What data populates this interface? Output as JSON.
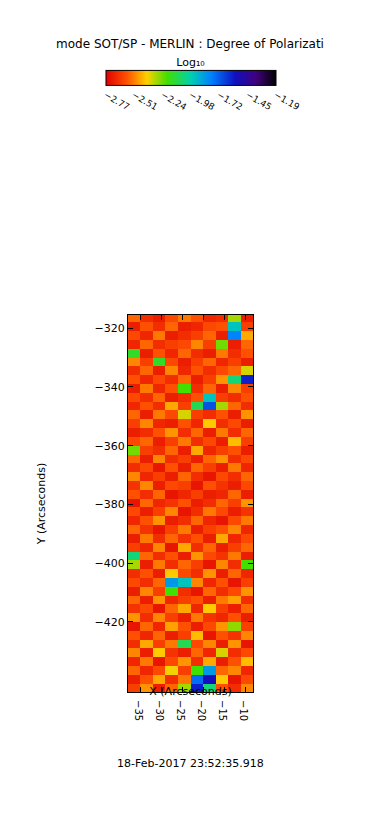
{
  "chart_data": {
    "type": "heatmap",
    "title": "mode SOT/SP - MERLIN : Degree of Polarizati",
    "x_label": "X (Arcseconds)",
    "y_label": "Y (Arcseconds)",
    "xlim": [
      -37.9,
      -8.1
    ],
    "ylim": [
      -443.9,
      -315.5
    ],
    "xticks": [
      -35,
      -30,
      -25,
      -20,
      -15,
      -10
    ],
    "yticks": [
      -420,
      -400,
      -380,
      -360,
      -340,
      -320
    ],
    "colorbar_title": "Log₁₀",
    "colorbar_range": [
      -2.77,
      -1.19
    ],
    "colorbar_ticks": [
      -2.77,
      -2.51,
      -2.24,
      -1.98,
      -1.72,
      -1.45,
      -1.19
    ],
    "annotations": [
      "18-Feb-2017 23:52:35.918"
    ],
    "x": [
      -36.5,
      -33.5,
      -30.5,
      -27.5,
      -24.5,
      -21.5,
      -18.5,
      -15.5,
      -12.5,
      -9.5
    ],
    "y": [
      -442.5,
      -439.5,
      -436.5,
      -433.5,
      -430.5,
      -427.5,
      -424.5,
      -421.5,
      -418.5,
      -415.5,
      -412.5,
      -409.5,
      -406.5,
      -403.5,
      -400.5,
      -397.5,
      -394.5,
      -391.5,
      -388.5,
      -385.5,
      -382.5,
      -379.5,
      -376.5,
      -373.5,
      -370.5,
      -367.5,
      -364.5,
      -361.5,
      -358.5,
      -355.5,
      -352.5,
      -349.5,
      -346.5,
      -343.5,
      -340.5,
      -337.5,
      -334.5,
      -331.5,
      -328.5,
      -325.5,
      -322.5,
      -319.5,
      -316.5
    ],
    "cells": [
      [
        -2.62,
        -2.48,
        -2.7,
        -2.55,
        -2.3,
        -1.6,
        -2.05,
        -2.58,
        -2.66,
        -2.5
      ],
      [
        -2.7,
        -2.58,
        -2.45,
        -2.66,
        -2.52,
        -1.75,
        -1.55,
        -2.4,
        -2.72,
        -2.6
      ],
      [
        -2.55,
        -2.68,
        -2.6,
        -2.38,
        -2.62,
        -2.2,
        -1.85,
        -2.55,
        -2.5,
        -2.68
      ],
      [
        -2.68,
        -2.52,
        -2.72,
        -2.6,
        -2.48,
        -2.66,
        -2.45,
        -2.7,
        -2.58,
        -2.42
      ],
      [
        -2.5,
        -2.7,
        -2.4,
        -2.65,
        -2.7,
        -2.55,
        -2.68,
        -2.35,
        -2.66,
        -2.6
      ],
      [
        -2.66,
        -2.45,
        -2.62,
        -2.52,
        -2.1,
        -2.6,
        -2.5,
        -2.7,
        -2.48,
        -2.72
      ],
      [
        -2.58,
        -2.68,
        -2.55,
        -2.7,
        -2.62,
        -2.42,
        -2.72,
        -2.58,
        -2.65,
        -2.5
      ],
      [
        -2.72,
        -2.55,
        -2.68,
        -2.46,
        -2.58,
        -2.7,
        -2.6,
        -2.48,
        -2.28,
        -2.62
      ],
      [
        -2.48,
        -2.66,
        -2.5,
        -2.62,
        -2.7,
        -2.52,
        -2.65,
        -2.68,
        -2.58,
        -2.7
      ],
      [
        -2.65,
        -2.6,
        -2.72,
        -2.55,
        -2.45,
        -2.68,
        -2.4,
        -2.62,
        -2.7,
        -2.55
      ],
      [
        -2.55,
        -2.7,
        -2.48,
        -2.68,
        -2.62,
        -2.58,
        -2.7,
        -2.52,
        -2.46,
        -2.66
      ],
      [
        -2.7,
        -2.5,
        -2.62,
        -2.2,
        -2.66,
        -2.72,
        -2.55,
        -2.66,
        -2.6,
        -2.48
      ],
      [
        -2.6,
        -2.66,
        -2.55,
        -1.85,
        -1.95,
        -2.5,
        -2.68,
        -2.58,
        -2.72,
        -2.62
      ],
      [
        -2.66,
        -2.58,
        -2.7,
        -2.4,
        -2.6,
        -2.66,
        -2.48,
        -2.7,
        -2.55,
        -2.68
      ],
      [
        -2.3,
        -2.7,
        -2.52,
        -2.66,
        -2.55,
        -2.62,
        -2.72,
        -2.5,
        -2.66,
        -2.2
      ],
      [
        -2.05,
        -2.55,
        -2.66,
        -2.58,
        -2.7,
        -2.48,
        -2.6,
        -2.65,
        -2.52,
        -2.7
      ],
      [
        -2.62,
        -2.68,
        -2.5,
        -2.72,
        -2.45,
        -2.66,
        -2.55,
        -2.7,
        -2.62,
        -2.55
      ],
      [
        -2.7,
        -2.52,
        -2.66,
        -2.55,
        -2.65,
        -2.58,
        -2.7,
        -2.45,
        -2.68,
        -2.6
      ],
      [
        -2.55,
        -2.65,
        -2.72,
        -2.62,
        -2.52,
        -2.7,
        -2.62,
        -2.58,
        -2.5,
        -2.68
      ],
      [
        -2.68,
        -2.58,
        -2.48,
        -2.7,
        -2.66,
        -2.55,
        -2.68,
        -2.72,
        -2.6,
        -2.52
      ],
      [
        -2.6,
        -2.7,
        -2.62,
        -2.5,
        -2.72,
        -2.66,
        -2.52,
        -2.6,
        -2.7,
        -2.65
      ],
      [
        -2.72,
        -2.55,
        -2.68,
        -2.65,
        -2.58,
        -2.7,
        -2.66,
        -2.55,
        -2.62,
        -2.48
      ],
      [
        -2.58,
        -2.66,
        -2.55,
        -2.72,
        -2.68,
        -2.62,
        -2.7,
        -2.68,
        -2.55,
        -2.7
      ],
      [
        -2.65,
        -2.5,
        -2.7,
        -2.6,
        -2.62,
        -2.72,
        -2.58,
        -2.65,
        -2.7,
        -2.6
      ],
      [
        -2.5,
        -2.68,
        -2.62,
        -2.7,
        -2.55,
        -2.66,
        -2.72,
        -2.6,
        -2.66,
        -2.55
      ],
      [
        -2.66,
        -2.6,
        -2.72,
        -2.58,
        -2.7,
        -2.55,
        -2.62,
        -2.7,
        -2.52,
        -2.68
      ],
      [
        -2.55,
        -2.7,
        -2.5,
        -2.66,
        -2.62,
        -2.7,
        -2.55,
        -2.48,
        -2.66,
        -2.6
      ],
      [
        -2.25,
        -2.62,
        -2.66,
        -2.55,
        -2.7,
        -2.45,
        -2.68,
        -2.62,
        -2.58,
        -2.7
      ],
      [
        -2.6,
        -2.55,
        -2.7,
        -2.62,
        -2.52,
        -2.66,
        -2.6,
        -2.7,
        -2.42,
        -2.62
      ],
      [
        -2.7,
        -2.66,
        -2.58,
        -2.48,
        -2.66,
        -2.55,
        -2.7,
        -2.52,
        -2.66,
        -2.55
      ],
      [
        -2.62,
        -2.5,
        -2.68,
        -2.7,
        -2.58,
        -2.68,
        -2.4,
        -2.66,
        -2.6,
        -2.7
      ],
      [
        -2.55,
        -2.7,
        -2.52,
        -2.6,
        -2.35,
        -2.62,
        -2.66,
        -2.58,
        -2.7,
        -2.48
      ],
      [
        -2.68,
        -2.58,
        -2.66,
        -2.45,
        -2.62,
        -2.1,
        -1.7,
        -2.3,
        -2.55,
        -2.66
      ],
      [
        -2.6,
        -2.66,
        -2.55,
        -2.7,
        -2.66,
        -2.58,
        -1.95,
        -2.62,
        -2.66,
        -2.58
      ],
      [
        -2.7,
        -2.52,
        -2.68,
        -2.58,
        -2.2,
        -2.66,
        -2.55,
        -2.7,
        -2.5,
        -2.62
      ],
      [
        -2.58,
        -2.68,
        -2.6,
        -2.66,
        -2.55,
        -2.7,
        -2.62,
        -2.48,
        -2.05,
        -1.6
      ],
      [
        -2.66,
        -2.55,
        -2.7,
        -2.5,
        -2.68,
        -2.58,
        -2.66,
        -2.6,
        -2.55,
        -2.35
      ],
      [
        -2.5,
        -2.62,
        -2.15,
        -2.6,
        -2.7,
        -2.62,
        -2.55,
        -2.68,
        -2.62,
        -2.7
      ],
      [
        -2.15,
        -2.7,
        -2.58,
        -2.68,
        -2.55,
        -2.66,
        -2.7,
        -2.52,
        -2.66,
        -2.58
      ],
      [
        -2.68,
        -2.55,
        -2.66,
        -2.62,
        -2.6,
        -2.5,
        -2.62,
        -2.25,
        -2.7,
        -2.55
      ],
      [
        -2.6,
        -2.68,
        -2.52,
        -2.7,
        -2.66,
        -2.62,
        -2.55,
        -2.7,
        -1.8,
        -2.45
      ],
      [
        -2.7,
        -2.58,
        -2.66,
        -2.55,
        -2.7,
        -2.68,
        -2.6,
        -2.58,
        -1.95,
        -2.62
      ],
      [
        -2.55,
        -2.66,
        -2.7,
        -2.6,
        -2.52,
        -2.58,
        -2.68,
        -2.66,
        -2.3,
        -2.7
      ]
    ]
  }
}
